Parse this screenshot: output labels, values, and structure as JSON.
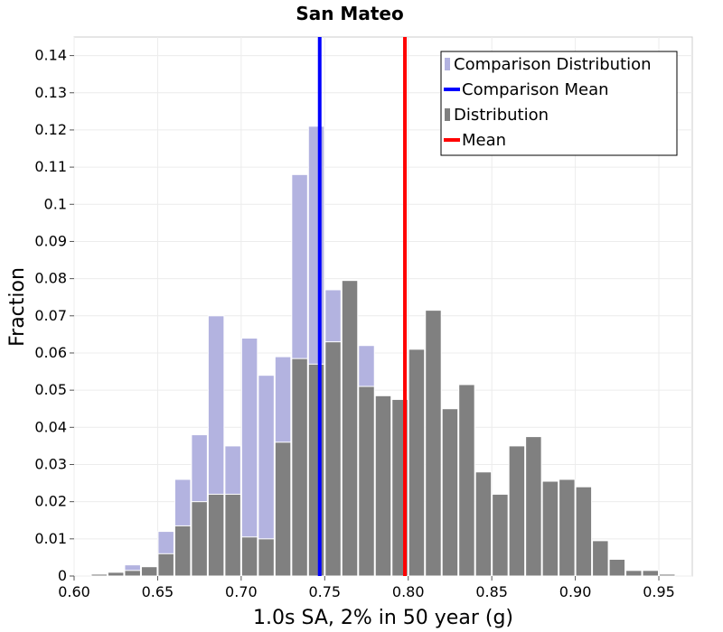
{
  "chart_data": {
    "type": "bar",
    "title": "San Mateo",
    "xlabel": "1.0s SA, 2% in 50 year (g)",
    "ylabel": "Fraction",
    "xlim": [
      0.6,
      0.97
    ],
    "ylim": [
      0,
      0.145
    ],
    "bin_width": 0.01,
    "grid": true,
    "legend_position": "top-right",
    "x_ticks": [
      "0.60",
      "0.65",
      "0.70",
      "0.75",
      "0.80",
      "0.85",
      "0.90",
      "0.95"
    ],
    "y_ticks": [
      "0",
      "0.01",
      "0.02",
      "0.03",
      "0.04",
      "0.05",
      "0.06",
      "0.07",
      "0.08",
      "0.09",
      "0.1",
      "0.11",
      "0.12",
      "0.13",
      "0.14"
    ],
    "series": [
      {
        "name": "Comparison Distribution",
        "color": "#b3b3e0",
        "bins": [
          0.635,
          0.645,
          0.655,
          0.665,
          0.675,
          0.685,
          0.695,
          0.705,
          0.715,
          0.725,
          0.735,
          0.745,
          0.755,
          0.765,
          0.775
        ],
        "values": [
          0.003,
          0.0025,
          0.012,
          0.026,
          0.038,
          0.07,
          0.035,
          0.064,
          0.054,
          0.059,
          0.108,
          0.121,
          0.077,
          0.049,
          0.062
        ]
      },
      {
        "name": "Distribution",
        "color": "#808080",
        "bins": [
          0.615,
          0.625,
          0.635,
          0.645,
          0.655,
          0.665,
          0.675,
          0.685,
          0.695,
          0.705,
          0.715,
          0.725,
          0.735,
          0.745,
          0.755,
          0.765,
          0.775,
          0.785,
          0.795,
          0.805,
          0.815,
          0.825,
          0.835,
          0.845,
          0.855,
          0.865,
          0.875,
          0.885,
          0.895,
          0.905,
          0.915,
          0.925,
          0.935,
          0.945,
          0.955
        ],
        "values": [
          0.0005,
          0.001,
          0.0015,
          0.0025,
          0.006,
          0.0135,
          0.02,
          0.022,
          0.022,
          0.0105,
          0.01,
          0.036,
          0.0585,
          0.057,
          0.063,
          0.0795,
          0.051,
          0.0485,
          0.0475,
          0.061,
          0.0715,
          0.045,
          0.0515,
          0.028,
          0.022,
          0.035,
          0.0375,
          0.0255,
          0.026,
          0.024,
          0.0095,
          0.0045,
          0.0015,
          0.0015,
          0.0005
        ]
      }
    ],
    "lines": [
      {
        "name": "Comparison Mean",
        "color": "#0000ff",
        "x": 0.747
      },
      {
        "name": "Mean",
        "color": "#ff0000",
        "x": 0.798
      }
    ],
    "legend": [
      {
        "label": "Comparison Distribution",
        "kind": "bar",
        "color": "#b3b3e0"
      },
      {
        "label": "Comparison Mean",
        "kind": "line",
        "color": "#0000ff"
      },
      {
        "label": "Distribution",
        "kind": "bar",
        "color": "#808080"
      },
      {
        "label": "Mean",
        "kind": "line",
        "color": "#ff0000"
      }
    ]
  }
}
